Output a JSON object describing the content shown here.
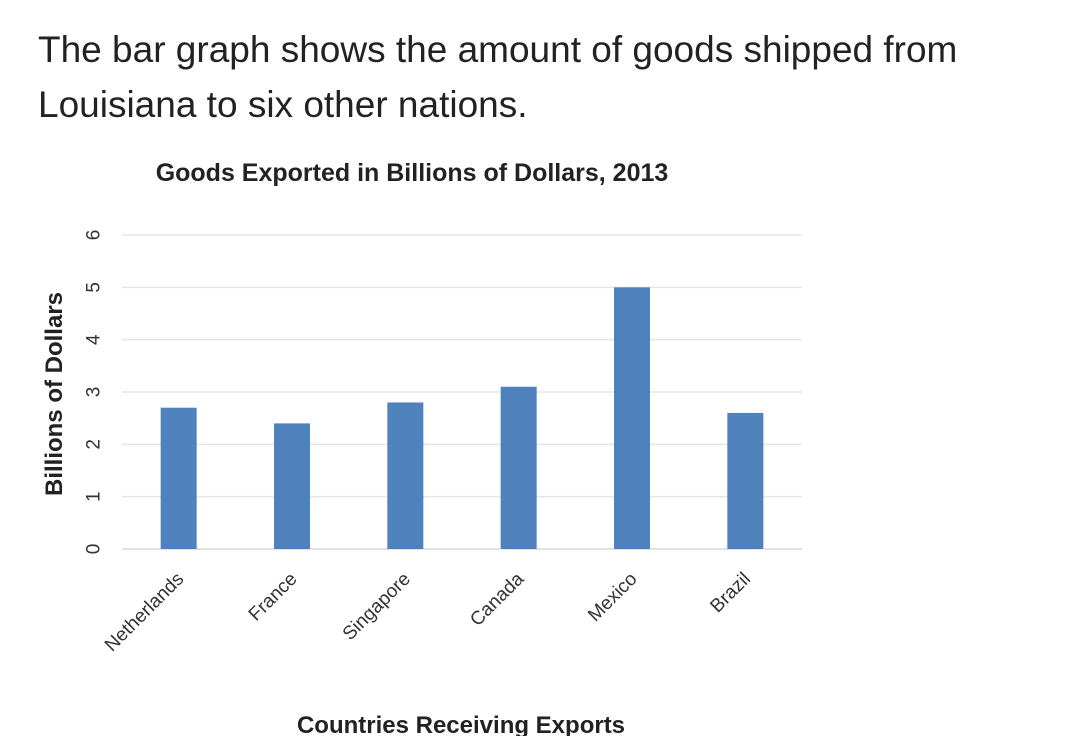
{
  "intro": {
    "text": "The bar graph shows the amount of goods shipped from Louisiana to six other nations."
  },
  "chart_data": {
    "type": "bar",
    "title": "Goods Exported in Billions of Dollars, 2013",
    "xlabel": "Countries Receiving Exports",
    "ylabel": "Billions of Dollars",
    "categories": [
      "Netherlands",
      "France",
      "Singapore",
      "Canada",
      "Mexico",
      "Brazil"
    ],
    "values": [
      2.7,
      2.4,
      2.8,
      3.1,
      5.0,
      2.6
    ],
    "ylim": [
      0,
      6
    ],
    "yticks": [
      0,
      1,
      2,
      3,
      4,
      5,
      6
    ],
    "grid": true,
    "bar_color": "#4f81bd"
  }
}
